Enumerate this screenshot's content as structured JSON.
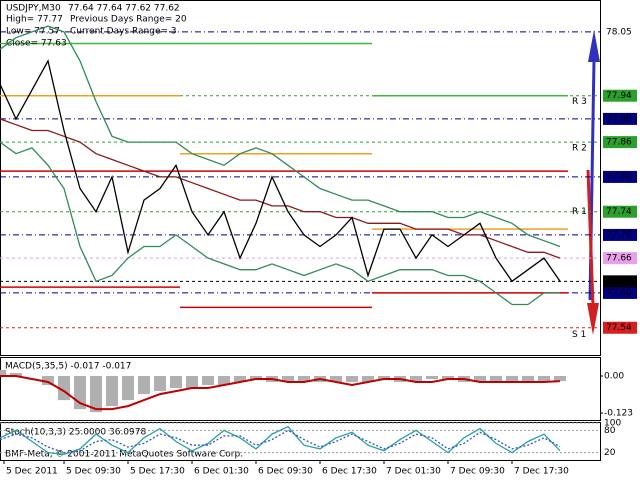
{
  "chart_data": {
    "type": "line",
    "title": "USDJPY,M30",
    "quote": "77.64 77.64 77.62 77.62",
    "info": [
      "High= 77.77",
      "Previous Days Range= 20",
      "Low= 77.57",
      "Current Days Range= 3",
      "Close= 77.63"
    ],
    "copyright": "BMF-Meta, © 2001-2011 MetaQuotes Software Corp.",
    "x": [
      0,
      4,
      8,
      12,
      16,
      20,
      24,
      28,
      32,
      36,
      40,
      44,
      48,
      52,
      56,
      60,
      64,
      68,
      72,
      76,
      80,
      84,
      88,
      92,
      96,
      100,
      104,
      108,
      112,
      116,
      120,
      124,
      128,
      132,
      136,
      140
    ],
    "xlim": [
      0,
      150
    ],
    "xticks": [
      {
        "value": 1,
        "label": "5 Dec 2011"
      },
      {
        "value": 16,
        "label": "5 Dec 09:30"
      },
      {
        "value": 32,
        "label": "5 Dec 17:30"
      },
      {
        "value": 48,
        "label": "6 Dec 01:30"
      },
      {
        "value": 64,
        "label": "6 Dec 09:30"
      },
      {
        "value": 80,
        "label": "6 Dec 17:30"
      },
      {
        "value": 96,
        "label": "7 Dec 01:30"
      },
      {
        "value": 112,
        "label": "7 Dec 09:30"
      },
      {
        "value": 128,
        "label": "7 Dec 17:30"
      }
    ],
    "ylim": [
      77.493,
      78.105
    ],
    "yticks": [
      78.05,
      {
        "value": 77.9,
        "label": "77.90"
      },
      {
        "value": 77.8,
        "label": "77.80"
      },
      {
        "value": 77.7,
        "label": "77.70"
      },
      {
        "value": 77.6,
        "label": "77.60"
      }
    ],
    "levels": [
      {
        "value": 77.94,
        "label": "77.94",
        "color": "#2ca02c"
      },
      {
        "value": 77.86,
        "label": "77.86",
        "color": "#2ca02c"
      },
      {
        "value": 77.74,
        "label": "77.74",
        "color": "#2ca02c"
      },
      {
        "value": 77.66,
        "label": "77.66",
        "color": "#e8a0e8"
      },
      {
        "value": 77.62,
        "label": "77.62",
        "color": "#000000"
      },
      {
        "value": 77.54,
        "label": "77.54",
        "color": "#d62020"
      }
    ],
    "day_bounds": [
      0,
      45,
      93,
      142
    ],
    "pivots": [
      {
        "color": "#3cb83c",
        "values": [
          78.03,
          78.03,
          77.94
        ]
      },
      {
        "color": "#f0a020",
        "values": [
          77.94,
          77.84,
          77.71
        ]
      },
      {
        "color": "#d00000",
        "values": [
          77.81,
          77.81,
          77.81
        ]
      },
      {
        "color": "#d00000",
        "values": [
          77.61,
          77.575,
          77.6
        ]
      }
    ],
    "pivot_labels": [
      {
        "value": 77.93,
        "label": "R 3"
      },
      {
        "value": 77.85,
        "label": "R 2"
      },
      {
        "value": 77.74,
        "label": "R 1"
      },
      {
        "value": 77.528,
        "label": "S 1"
      }
    ],
    "series": [
      {
        "color": "#2e8b57",
        "values": [
          78.02,
          78.04,
          78.05,
          78.06,
          78.05,
          78.0,
          77.93,
          77.87,
          77.86,
          77.86,
          77.86,
          77.86,
          77.84,
          77.83,
          77.82,
          77.84,
          77.85,
          77.84,
          77.82,
          77.8,
          77.78,
          77.77,
          77.76,
          77.76,
          77.75,
          77.74,
          77.74,
          77.74,
          77.73,
          77.73,
          77.74,
          77.73,
          77.72,
          77.7,
          77.69,
          77.68
        ]
      },
      {
        "color": "#2e8b57",
        "values": [
          77.86,
          77.84,
          77.85,
          77.82,
          77.78,
          77.68,
          77.62,
          77.63,
          77.66,
          77.68,
          77.68,
          77.7,
          77.68,
          77.66,
          77.65,
          77.64,
          77.64,
          77.65,
          77.64,
          77.63,
          77.64,
          77.65,
          77.64,
          77.62,
          77.63,
          77.64,
          77.64,
          77.64,
          77.63,
          77.63,
          77.62,
          77.6,
          77.58,
          77.58,
          77.6,
          77.6
        ]
      },
      {
        "color": "#8b1a1a",
        "values": [
          77.9,
          77.89,
          77.88,
          77.88,
          77.87,
          77.86,
          77.84,
          77.83,
          77.82,
          77.81,
          77.8,
          77.8,
          77.79,
          77.78,
          77.77,
          77.76,
          77.76,
          77.75,
          77.75,
          77.74,
          77.74,
          77.73,
          77.73,
          77.72,
          77.72,
          77.72,
          77.71,
          77.71,
          77.71,
          77.7,
          77.7,
          77.69,
          77.68,
          77.67,
          77.67,
          77.66
        ]
      },
      {
        "color": "#000000",
        "values": [
          77.96,
          77.9,
          77.95,
          78.0,
          77.88,
          77.78,
          77.74,
          77.8,
          77.67,
          77.76,
          77.78,
          77.82,
          77.74,
          77.7,
          77.74,
          77.66,
          77.72,
          77.8,
          77.74,
          77.7,
          77.68,
          77.7,
          77.73,
          77.63,
          77.71,
          77.71,
          77.66,
          77.7,
          77.68,
          77.7,
          77.72,
          77.66,
          77.62,
          77.64,
          77.66,
          77.62
        ]
      }
    ],
    "macd": {
      "title": "MACD(5,35,5) -0.017 -0.017",
      "ylim": [
        -0.146,
        0.063
      ],
      "yticks": [
        {
          "value": 0,
          "label": "0.00"
        },
        -0.123
      ],
      "histogram": {
        "color": "#b0b0b0",
        "values": [
          0.02,
          0.01,
          0.0,
          -0.03,
          -0.08,
          -0.11,
          -0.12,
          -0.1,
          -0.08,
          -0.06,
          -0.05,
          -0.04,
          -0.04,
          -0.03,
          -0.03,
          -0.02,
          -0.01,
          -0.02,
          -0.02,
          -0.02,
          -0.02,
          -0.02,
          -0.02,
          -0.02,
          -0.01,
          -0.02,
          -0.02,
          -0.01,
          -0.01,
          -0.02,
          -0.02,
          -0.02,
          -0.02,
          -0.02,
          -0.02,
          -0.017
        ]
      },
      "signal": {
        "color": "#c00000",
        "values": [
          0.0,
          0.0,
          -0.01,
          -0.02,
          -0.05,
          -0.09,
          -0.11,
          -0.11,
          -0.1,
          -0.08,
          -0.06,
          -0.05,
          -0.04,
          -0.04,
          -0.03,
          -0.02,
          -0.01,
          -0.01,
          -0.02,
          -0.02,
          -0.01,
          -0.02,
          -0.03,
          -0.02,
          -0.01,
          -0.01,
          -0.02,
          -0.02,
          -0.01,
          -0.01,
          -0.02,
          -0.02,
          -0.02,
          -0.02,
          -0.02,
          -0.017
        ]
      }
    },
    "stoch": {
      "title": "Stoch(10,3,3) 25.0000 36.0978",
      "ylim": [
        0,
        100
      ],
      "yticks": [
        20,
        80,
        100
      ],
      "main": {
        "color": "#2aa0a0",
        "values": [
          60,
          80,
          50,
          20,
          15,
          30,
          70,
          40,
          20,
          60,
          85,
          50,
          25,
          45,
          80,
          60,
          30,
          70,
          90,
          40,
          30,
          60,
          75,
          40,
          25,
          55,
          80,
          50,
          20,
          60,
          85,
          45,
          20,
          50,
          70,
          25
        ]
      },
      "signal": {
        "color": "#3050d0",
        "values": [
          55,
          70,
          60,
          35,
          20,
          25,
          50,
          55,
          35,
          45,
          70,
          60,
          40,
          40,
          65,
          65,
          40,
          55,
          80,
          55,
          35,
          50,
          70,
          50,
          30,
          45,
          70,
          60,
          30,
          45,
          75,
          55,
          30,
          40,
          60,
          36
        ]
      }
    }
  }
}
